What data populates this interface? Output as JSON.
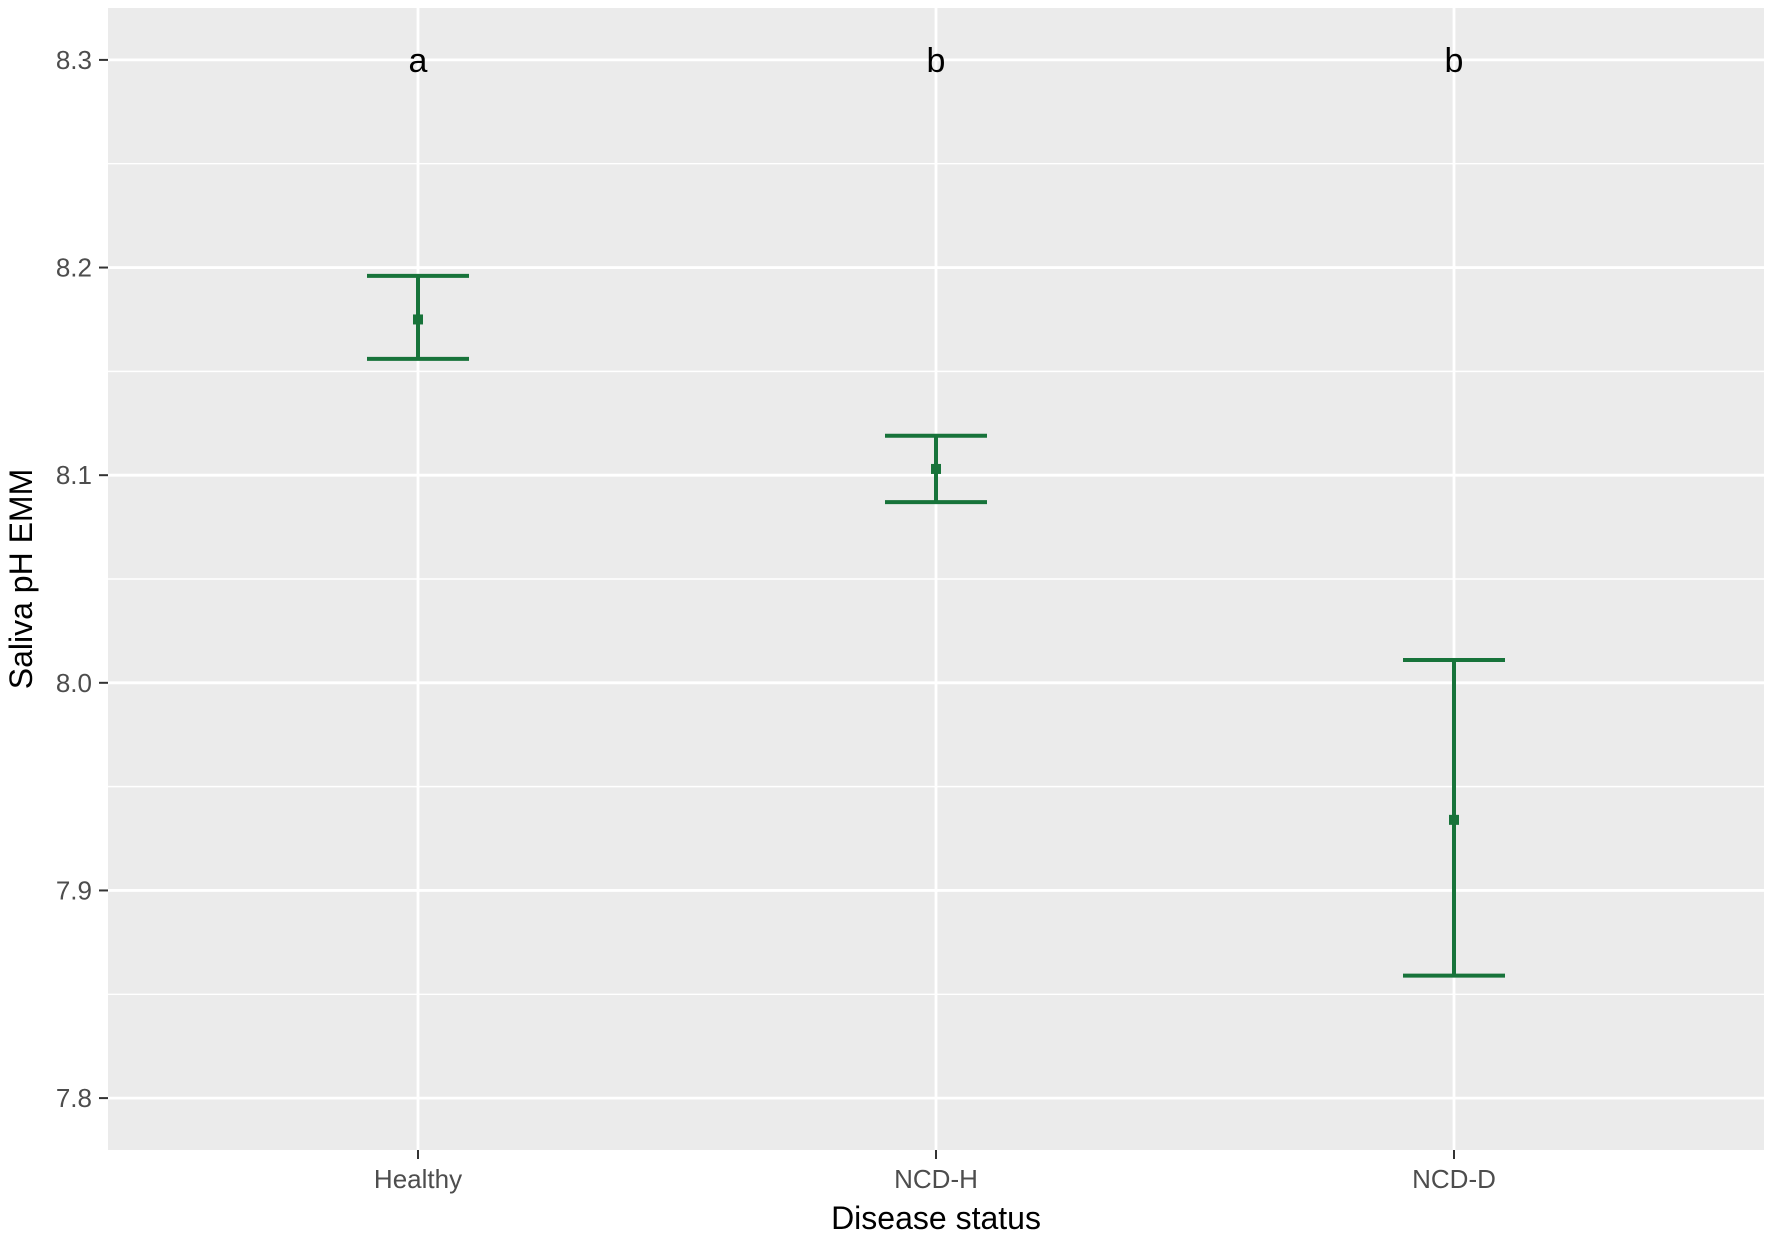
{
  "chart_data": {
    "type": "errorbar",
    "title": "",
    "xlabel": "Disease status",
    "ylabel": "Saliva pH EMM",
    "categories": [
      "Healthy",
      "NCD-H",
      "NCD-D"
    ],
    "values": [
      8.175,
      8.103,
      7.934
    ],
    "lower": [
      8.156,
      8.087,
      7.859
    ],
    "upper": [
      8.196,
      8.119,
      8.011
    ],
    "letters": [
      "a",
      "b",
      "b"
    ],
    "ylim": [
      7.775,
      8.325
    ],
    "yticks": [
      7.8,
      7.9,
      8.0,
      8.1,
      8.2,
      8.3
    ],
    "ytick_labels": [
      "7.8",
      "7.9",
      "8.0",
      "8.1",
      "8.2",
      "8.3"
    ],
    "letter_y": 8.3,
    "grid": true,
    "legend": "none",
    "colors": {
      "series": "#17733a",
      "panel": "#ebebeb",
      "grid": "#ffffff",
      "tick_text": "#4d4d4d",
      "tick_mark": "#333333"
    }
  }
}
